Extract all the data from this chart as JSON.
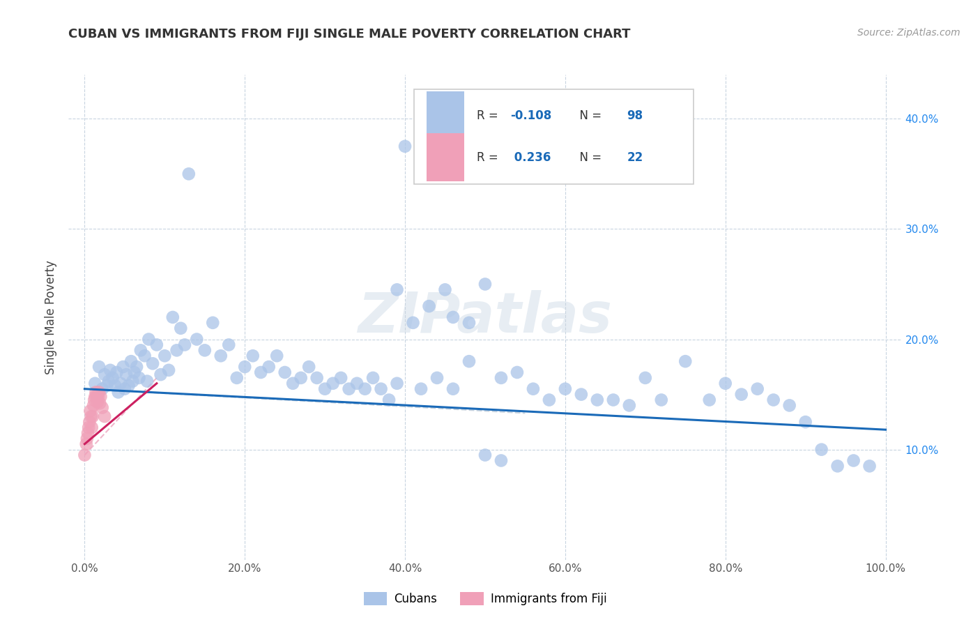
{
  "title": "CUBAN VS IMMIGRANTS FROM FIJI SINGLE MALE POVERTY CORRELATION CHART",
  "source": "Source: ZipAtlas.com",
  "ylabel": "Single Male Poverty",
  "watermark": "ZIPatlas",
  "legend_labels": [
    "Cubans",
    "Immigrants from Fiji"
  ],
  "R_cubans": -0.108,
  "N_cubans": 98,
  "R_fiji": 0.236,
  "N_fiji": 22,
  "xlim": [
    -0.02,
    1.02
  ],
  "ylim": [
    0.0,
    0.44
  ],
  "xticks": [
    0.0,
    0.2,
    0.4,
    0.6,
    0.8,
    1.0
  ],
  "yticks": [
    0.1,
    0.2,
    0.3,
    0.4
  ],
  "ytick_labels": [
    "10.0%",
    "20.0%",
    "30.0%",
    "40.0%"
  ],
  "xtick_labels": [
    "0.0%",
    "20.0%",
    "40.0%",
    "60.0%",
    "80.0%",
    "100.0%"
  ],
  "blue_color": "#aac4e8",
  "pink_color": "#f0a0b8",
  "line_blue": "#1a6ab8",
  "line_pink": "#cc2060",
  "dashed_line_color": "#c8c8c8",
  "cubans_x": [
    0.013,
    0.018,
    0.022,
    0.025,
    0.028,
    0.03,
    0.032,
    0.035,
    0.038,
    0.04,
    0.042,
    0.045,
    0.048,
    0.05,
    0.052,
    0.055,
    0.058,
    0.06,
    0.062,
    0.065,
    0.068,
    0.07,
    0.075,
    0.078,
    0.08,
    0.085,
    0.09,
    0.095,
    0.1,
    0.105,
    0.11,
    0.115,
    0.12,
    0.125,
    0.13,
    0.14,
    0.15,
    0.16,
    0.17,
    0.18,
    0.19,
    0.2,
    0.21,
    0.22,
    0.23,
    0.24,
    0.25,
    0.26,
    0.27,
    0.28,
    0.29,
    0.3,
    0.31,
    0.32,
    0.33,
    0.34,
    0.35,
    0.36,
    0.37,
    0.38,
    0.39,
    0.4,
    0.42,
    0.44,
    0.46,
    0.48,
    0.5,
    0.52,
    0.54,
    0.56,
    0.58,
    0.6,
    0.62,
    0.64,
    0.66,
    0.68,
    0.7,
    0.72,
    0.75,
    0.78,
    0.8,
    0.82,
    0.84,
    0.86,
    0.88,
    0.9,
    0.92,
    0.94,
    0.96,
    0.98,
    0.39,
    0.41,
    0.43,
    0.45,
    0.46,
    0.48,
    0.5,
    0.52
  ],
  "cubans_y": [
    0.16,
    0.175,
    0.155,
    0.168,
    0.158,
    0.162,
    0.172,
    0.165,
    0.158,
    0.17,
    0.152,
    0.16,
    0.175,
    0.155,
    0.168,
    0.158,
    0.18,
    0.162,
    0.17,
    0.175,
    0.165,
    0.19,
    0.185,
    0.162,
    0.2,
    0.178,
    0.195,
    0.168,
    0.185,
    0.172,
    0.22,
    0.19,
    0.21,
    0.195,
    0.35,
    0.2,
    0.19,
    0.215,
    0.185,
    0.195,
    0.165,
    0.175,
    0.185,
    0.17,
    0.175,
    0.185,
    0.17,
    0.16,
    0.165,
    0.175,
    0.165,
    0.155,
    0.16,
    0.165,
    0.155,
    0.16,
    0.155,
    0.165,
    0.155,
    0.145,
    0.16,
    0.375,
    0.155,
    0.165,
    0.155,
    0.18,
    0.25,
    0.165,
    0.17,
    0.155,
    0.145,
    0.155,
    0.15,
    0.145,
    0.145,
    0.14,
    0.165,
    0.145,
    0.18,
    0.145,
    0.16,
    0.15,
    0.155,
    0.145,
    0.14,
    0.125,
    0.1,
    0.085,
    0.09,
    0.085,
    0.245,
    0.215,
    0.23,
    0.245,
    0.22,
    0.215,
    0.095,
    0.09
  ],
  "fiji_x": [
    0.0,
    0.002,
    0.003,
    0.004,
    0.005,
    0.006,
    0.007,
    0.008,
    0.009,
    0.01,
    0.011,
    0.012,
    0.013,
    0.014,
    0.015,
    0.016,
    0.017,
    0.018,
    0.019,
    0.02,
    0.022,
    0.025
  ],
  "fiji_y": [
    0.095,
    0.105,
    0.11,
    0.115,
    0.12,
    0.125,
    0.135,
    0.13,
    0.12,
    0.13,
    0.14,
    0.145,
    0.148,
    0.152,
    0.148,
    0.143,
    0.148,
    0.152,
    0.142,
    0.148,
    0.138,
    0.13
  ],
  "blue_trendline_x": [
    0.0,
    1.0
  ],
  "blue_trendline_y": [
    0.155,
    0.118
  ],
  "pink_trendline_x": [
    0.0,
    0.09
  ],
  "pink_trendline_y": [
    0.105,
    0.16
  ]
}
